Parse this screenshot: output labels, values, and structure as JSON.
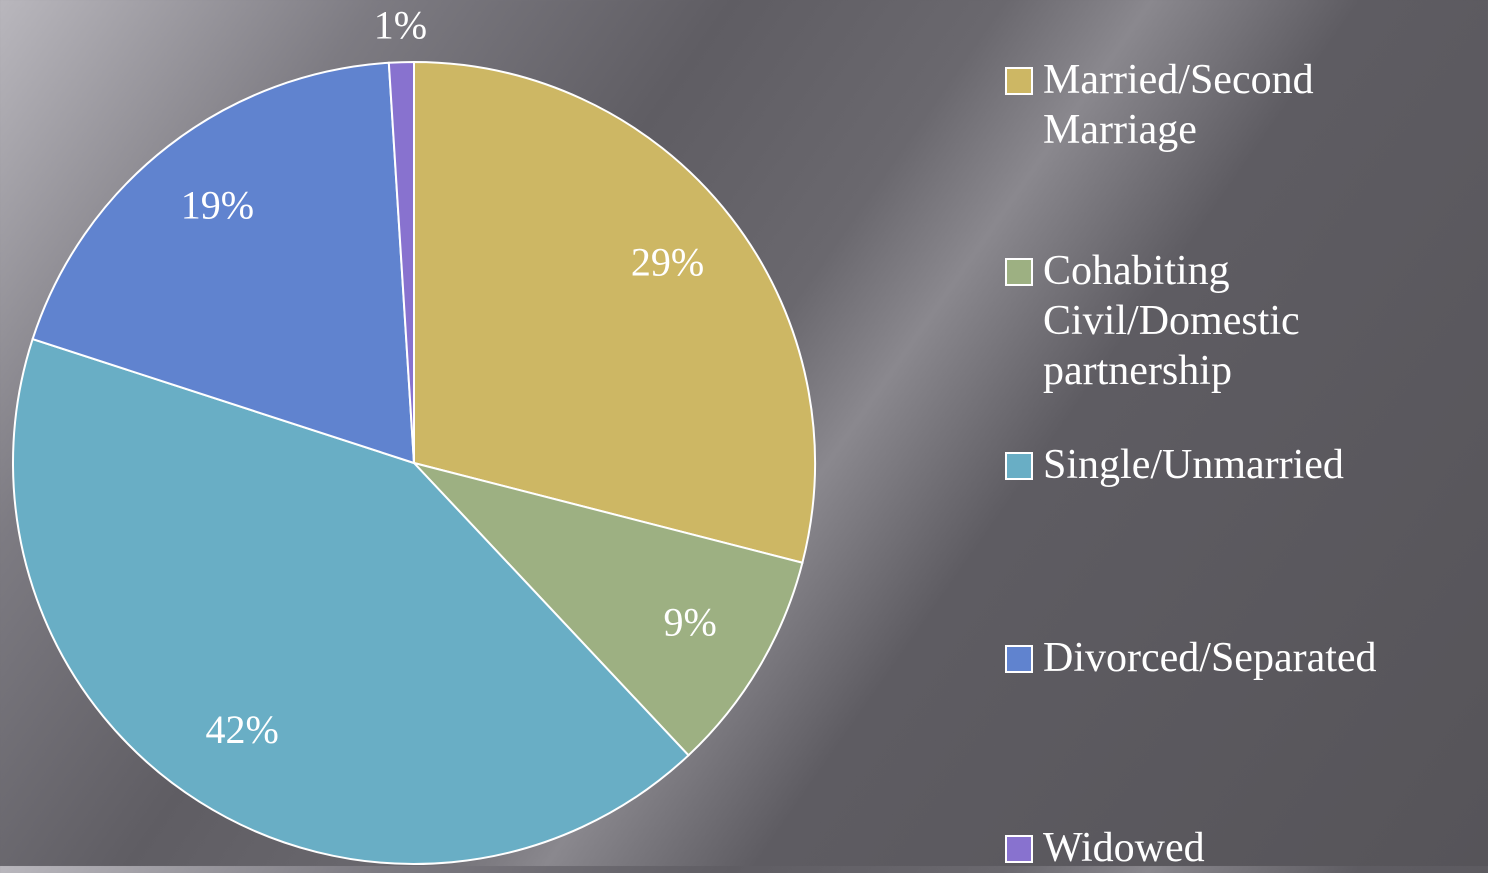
{
  "chart_data": {
    "type": "pie",
    "categories": [
      "Married/Second Marriage",
      "Cohabiting Civil/Domestic partnership",
      "Single/Unmarried",
      "Divorced/Separated",
      "Widowed"
    ],
    "values": [
      29,
      9,
      42,
      19,
      1
    ],
    "value_labels": [
      "29%",
      "9%",
      "42%",
      "19%",
      "1%"
    ],
    "colors": [
      "#cdb764",
      "#9db082",
      "#69aec5",
      "#6083cf",
      "#8872cf"
    ],
    "legend": "right"
  }
}
